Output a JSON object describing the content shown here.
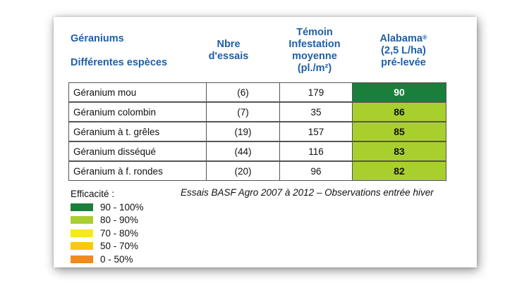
{
  "header": {
    "col1_line1": "Géraniums",
    "col1_line2": "Différentes espèces",
    "col2": "Nbre\nd'essais",
    "col3": "Témoin\nInfestation\nmoyenne\n(pl./m²)",
    "col4_brand": "Alabama",
    "col4_mark": "®",
    "col4_rest": "(2,5 L/ha)\npré-levée"
  },
  "rows": [
    {
      "name": "Géranium mou",
      "trials": "(6)",
      "infestation": "179",
      "efficacy": "90",
      "color": "#1a7f3a",
      "text_color": "#ffffff"
    },
    {
      "name": "Géranium colombin",
      "trials": "(7)",
      "infestation": "35",
      "efficacy": "86",
      "color": "#a9cf2f",
      "text_color": "#111111"
    },
    {
      "name": "Géranium à t. grêles",
      "trials": "(19)",
      "infestation": "157",
      "efficacy": "85",
      "color": "#a9cf2f",
      "text_color": "#111111"
    },
    {
      "name": "Géranium disséqué",
      "trials": "(44)",
      "infestation": "116",
      "efficacy": "83",
      "color": "#a9cf2f",
      "text_color": "#111111"
    },
    {
      "name": "Géranium à f. rondes",
      "trials": "(20)",
      "infestation": "96",
      "efficacy": "82",
      "color": "#a9cf2f",
      "text_color": "#111111"
    }
  ],
  "legend": {
    "title": "Efficacité :",
    "items": [
      {
        "label": "90 - 100%",
        "color": "#1a7f3a"
      },
      {
        "label": "80 - 90%",
        "color": "#a9cf2f"
      },
      {
        "label": "70 - 80%",
        "color": "#f7e81e"
      },
      {
        "label": "50 - 70%",
        "color": "#f9c80e"
      },
      {
        "label": "0 - 50%",
        "color": "#f08a1c"
      }
    ]
  },
  "note": "Essais BASF Agro 2007 à 2012 – Observations entrée hiver"
}
